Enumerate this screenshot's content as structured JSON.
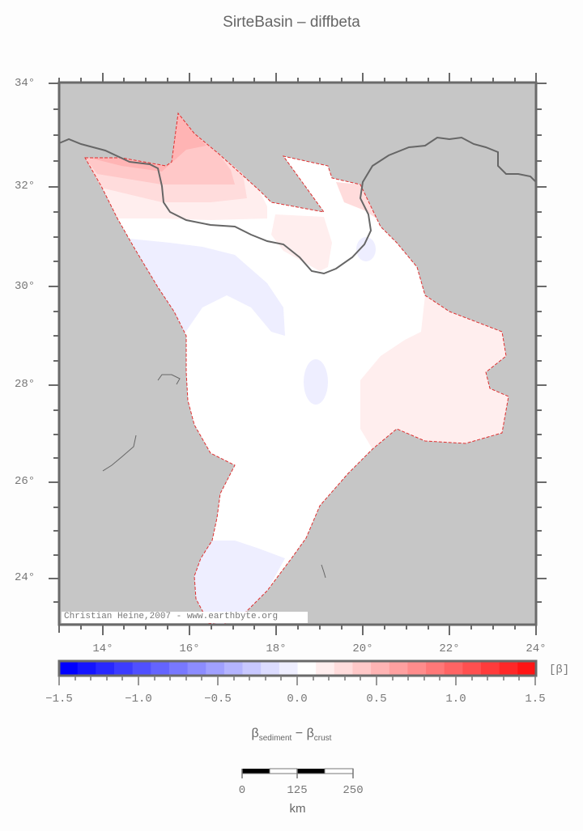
{
  "title": "SirteBasin – diffbeta",
  "map": {
    "region": "Sirte Basin",
    "lon_range": [
      13,
      24
    ],
    "lat_range": [
      23,
      34
    ],
    "lat_ticks": [
      "34°",
      "32°",
      "30°",
      "28°",
      "26°",
      "24°"
    ],
    "lon_ticks": [
      "14°",
      "16°",
      "18°",
      "20°",
      "22°",
      "24°"
    ],
    "background_color": "#c6c6c6",
    "basin_outline_color": "#e03030",
    "coastline_color": "#666666",
    "credit": "Christian Heine,2007 - www.earthbyte.org"
  },
  "colorbar": {
    "min": -1.5,
    "max": 1.5,
    "tick_labels": [
      "−1.5",
      "−1.0",
      "−0.5",
      "0.0",
      "0.5",
      "1.0",
      "1.5"
    ],
    "unit": "[β]",
    "label_main": "β",
    "label_sub1": "sediment",
    "label_mid": " − β",
    "label_sub2": "crust",
    "colors": [
      "#0000ff",
      "#1414ff",
      "#2828ff",
      "#3c3cff",
      "#5050ff",
      "#6464ff",
      "#7878ff",
      "#8c8cff",
      "#a0a0ff",
      "#b4b4ff",
      "#c8c8ff",
      "#dcdcff",
      "#eeeeff",
      "#ffffff",
      "#ffeeee",
      "#ffdcdc",
      "#ffc8c8",
      "#ffb4b4",
      "#ffa0a0",
      "#ff8c8c",
      "#ff7878",
      "#ff6464",
      "#ff5050",
      "#ff3c3c",
      "#ff2828",
      "#ff1414"
    ]
  },
  "scalebar": {
    "labels": [
      "0",
      "125",
      "250"
    ],
    "unit": "km"
  }
}
